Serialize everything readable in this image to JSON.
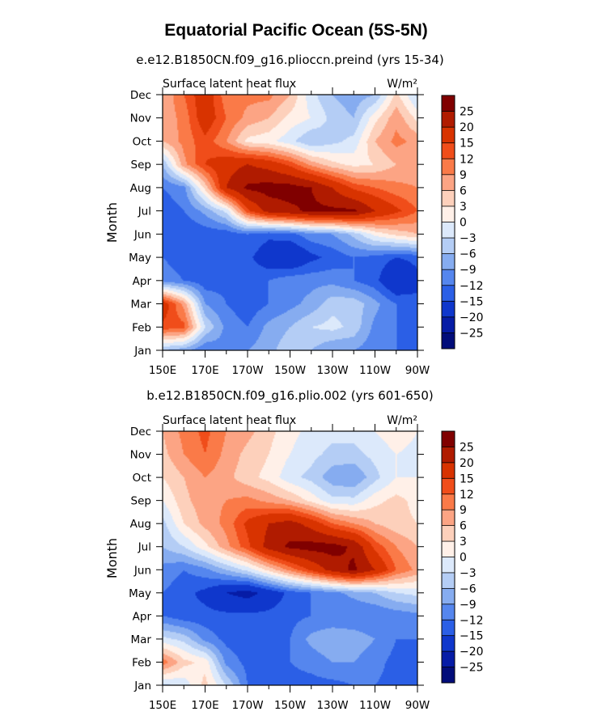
{
  "title": "Equatorial Pacific Ocean (5S-5N)",
  "chart_data": [
    {
      "type": "heatmap",
      "subtitle": "e.e12.B1850CN.f09_g16.plioccn.preind (yrs 15-34)",
      "variable_label": "Surface latent heat flux",
      "units_label": "W/m²",
      "ylabel": "Month",
      "x_ticks": [
        "150E",
        "170E",
        "170W",
        "150W",
        "130W",
        "110W",
        "90W"
      ],
      "y_ticks": [
        "Jan",
        "Feb",
        "Mar",
        "Apr",
        "May",
        "Jun",
        "Jul",
        "Aug",
        "Sep",
        "Oct",
        "Nov",
        "Dec"
      ],
      "colorbar_labels": [
        "25",
        "20",
        "15",
        "12",
        "9",
        "6",
        "3",
        "0",
        "-3",
        "-6",
        "-9",
        "-12",
        "-15",
        "-20",
        "-25"
      ],
      "colorbar_colors": [
        "#800000",
        "#b01b00",
        "#d83300",
        "#f04d1a",
        "#fa7a48",
        "#fca484",
        "#fdd0bb",
        "#fff0e8",
        "#dce9fb",
        "#b4cdf5",
        "#86acf0",
        "#5586ee",
        "#2b5fe6",
        "#0f37cc",
        "#061ca6",
        "#020d7a"
      ],
      "columns": [
        "150E",
        "160E",
        "170E",
        "180",
        "170W",
        "160W",
        "150W",
        "140W",
        "130W",
        "120W",
        "110W",
        "100W",
        "90W"
      ],
      "rows": [
        "Jan",
        "Feb",
        "Mar",
        "Apr",
        "May",
        "Jun",
        "Jul",
        "Aug",
        "Sep",
        "Oct",
        "Nov",
        "Dec"
      ],
      "values": [
        [
          -6,
          -8,
          -12,
          -10,
          -9,
          -7,
          -4,
          -6,
          -9,
          -9,
          -11,
          -12,
          -14
        ],
        [
          14,
          13,
          -3,
          -10,
          -12,
          -8,
          -6,
          -3,
          -2,
          -4,
          -10,
          -12,
          -14
        ],
        [
          18,
          8,
          -9,
          -12,
          -14,
          -12,
          -10,
          -8,
          -4,
          -4,
          -8,
          -12,
          -14
        ],
        [
          -10,
          -12,
          -14,
          -13,
          -13,
          -12,
          -10,
          -10,
          -10,
          -12,
          -14,
          -20,
          -16
        ],
        [
          -12,
          -14,
          -15,
          -14,
          -14,
          -18,
          -20,
          -16,
          -14,
          -12,
          -13,
          -15,
          -14
        ],
        [
          -13,
          -15,
          -14,
          -14,
          -12,
          -14,
          -13,
          -10,
          -9,
          -5,
          1,
          4,
          6
        ],
        [
          -14,
          -12,
          -8,
          -2,
          14,
          22,
          24,
          26,
          26,
          26,
          20,
          16,
          12
        ],
        [
          -12,
          -10,
          4,
          20,
          26,
          27,
          27,
          25,
          20,
          14,
          12,
          10,
          9
        ],
        [
          -6,
          8,
          15,
          18,
          20,
          18,
          14,
          8,
          4,
          2,
          3,
          6,
          7
        ],
        [
          6,
          10,
          14,
          9,
          2,
          1,
          -2,
          -6,
          -4,
          -2,
          6,
          10,
          8
        ],
        [
          7,
          10,
          18,
          12,
          8,
          6,
          2,
          0,
          -4,
          -6,
          2,
          8,
          2
        ],
        [
          6,
          12,
          18,
          10,
          10,
          10,
          6,
          -2,
          -6,
          -8,
          -6,
          4,
          -4
        ]
      ]
    },
    {
      "type": "heatmap",
      "subtitle": "b.e12.B1850CN.f09_g16.plio.002 (yrs 601-650)",
      "variable_label": "Surface latent heat flux",
      "units_label": "W/m²",
      "ylabel": "Month",
      "x_ticks": [
        "150E",
        "170E",
        "170W",
        "150W",
        "130W",
        "110W",
        "90W"
      ],
      "y_ticks": [
        "Jan",
        "Feb",
        "Mar",
        "Apr",
        "May",
        "Jun",
        "Jul",
        "Aug",
        "Sep",
        "Oct",
        "Nov",
        "Dec"
      ],
      "colorbar_labels": [
        "25",
        "20",
        "15",
        "12",
        "9",
        "6",
        "3",
        "0",
        "-3",
        "-6",
        "-9",
        "-12",
        "-15",
        "-20",
        "-25"
      ],
      "colorbar_colors": [
        "#800000",
        "#b01b00",
        "#d83300",
        "#f04d1a",
        "#fa7a48",
        "#fca484",
        "#fdd0bb",
        "#fff0e8",
        "#dce9fb",
        "#b4cdf5",
        "#86acf0",
        "#5586ee",
        "#2b5fe6",
        "#0f37cc",
        "#061ca6",
        "#020d7a"
      ],
      "columns": [
        "150E",
        "160E",
        "170E",
        "180",
        "170W",
        "160W",
        "150W",
        "140W",
        "130W",
        "120W",
        "110W",
        "100W",
        "90W"
      ],
      "rows": [
        "Jan",
        "Feb",
        "Mar",
        "Apr",
        "May",
        "Jun",
        "Jul",
        "Aug",
        "Sep",
        "Oct",
        "Nov",
        "Dec"
      ],
      "values": [
        [
          -4,
          -2,
          4,
          -3,
          -12,
          -14,
          -13,
          -13,
          -13,
          -12,
          -12,
          -13,
          -13
        ],
        [
          11,
          4,
          2,
          -10,
          -13,
          -13,
          -12,
          -11,
          -9,
          -9,
          -11,
          -13,
          -13
        ],
        [
          -2,
          -4,
          -10,
          -13,
          -14,
          -13,
          -12,
          -8,
          -6,
          -7,
          -9,
          -12,
          -12
        ],
        [
          -12,
          -14,
          -14,
          -14,
          -14,
          -14,
          -13,
          -12,
          -12,
          -12,
          -12,
          -11,
          -10
        ],
        [
          -12,
          -14,
          -16,
          -20,
          -22,
          -18,
          -14,
          -12,
          -10,
          -8,
          -6,
          -3,
          -2
        ],
        [
          -10,
          -12,
          -10,
          -6,
          -2,
          4,
          10,
          16,
          22,
          26,
          20,
          12,
          8
        ],
        [
          -6,
          -3,
          2,
          8,
          14,
          22,
          26,
          27,
          27,
          24,
          14,
          9,
          6
        ],
        [
          -4,
          3,
          7,
          10,
          16,
          20,
          22,
          18,
          12,
          9,
          6,
          4,
          3
        ],
        [
          0,
          5,
          8,
          9,
          10,
          8,
          6,
          2,
          -2,
          -2,
          2,
          4,
          2
        ],
        [
          3,
          6,
          9,
          7,
          4,
          2,
          -2,
          -4,
          -8,
          -9,
          -4,
          0,
          0
        ],
        [
          5,
          9,
          12,
          8,
          5,
          3,
          0,
          -2,
          -4,
          -4,
          -2,
          0,
          -1
        ],
        [
          6,
          10,
          13,
          9,
          7,
          4,
          1,
          -1,
          -2,
          -2,
          0,
          2,
          0
        ]
      ]
    }
  ]
}
